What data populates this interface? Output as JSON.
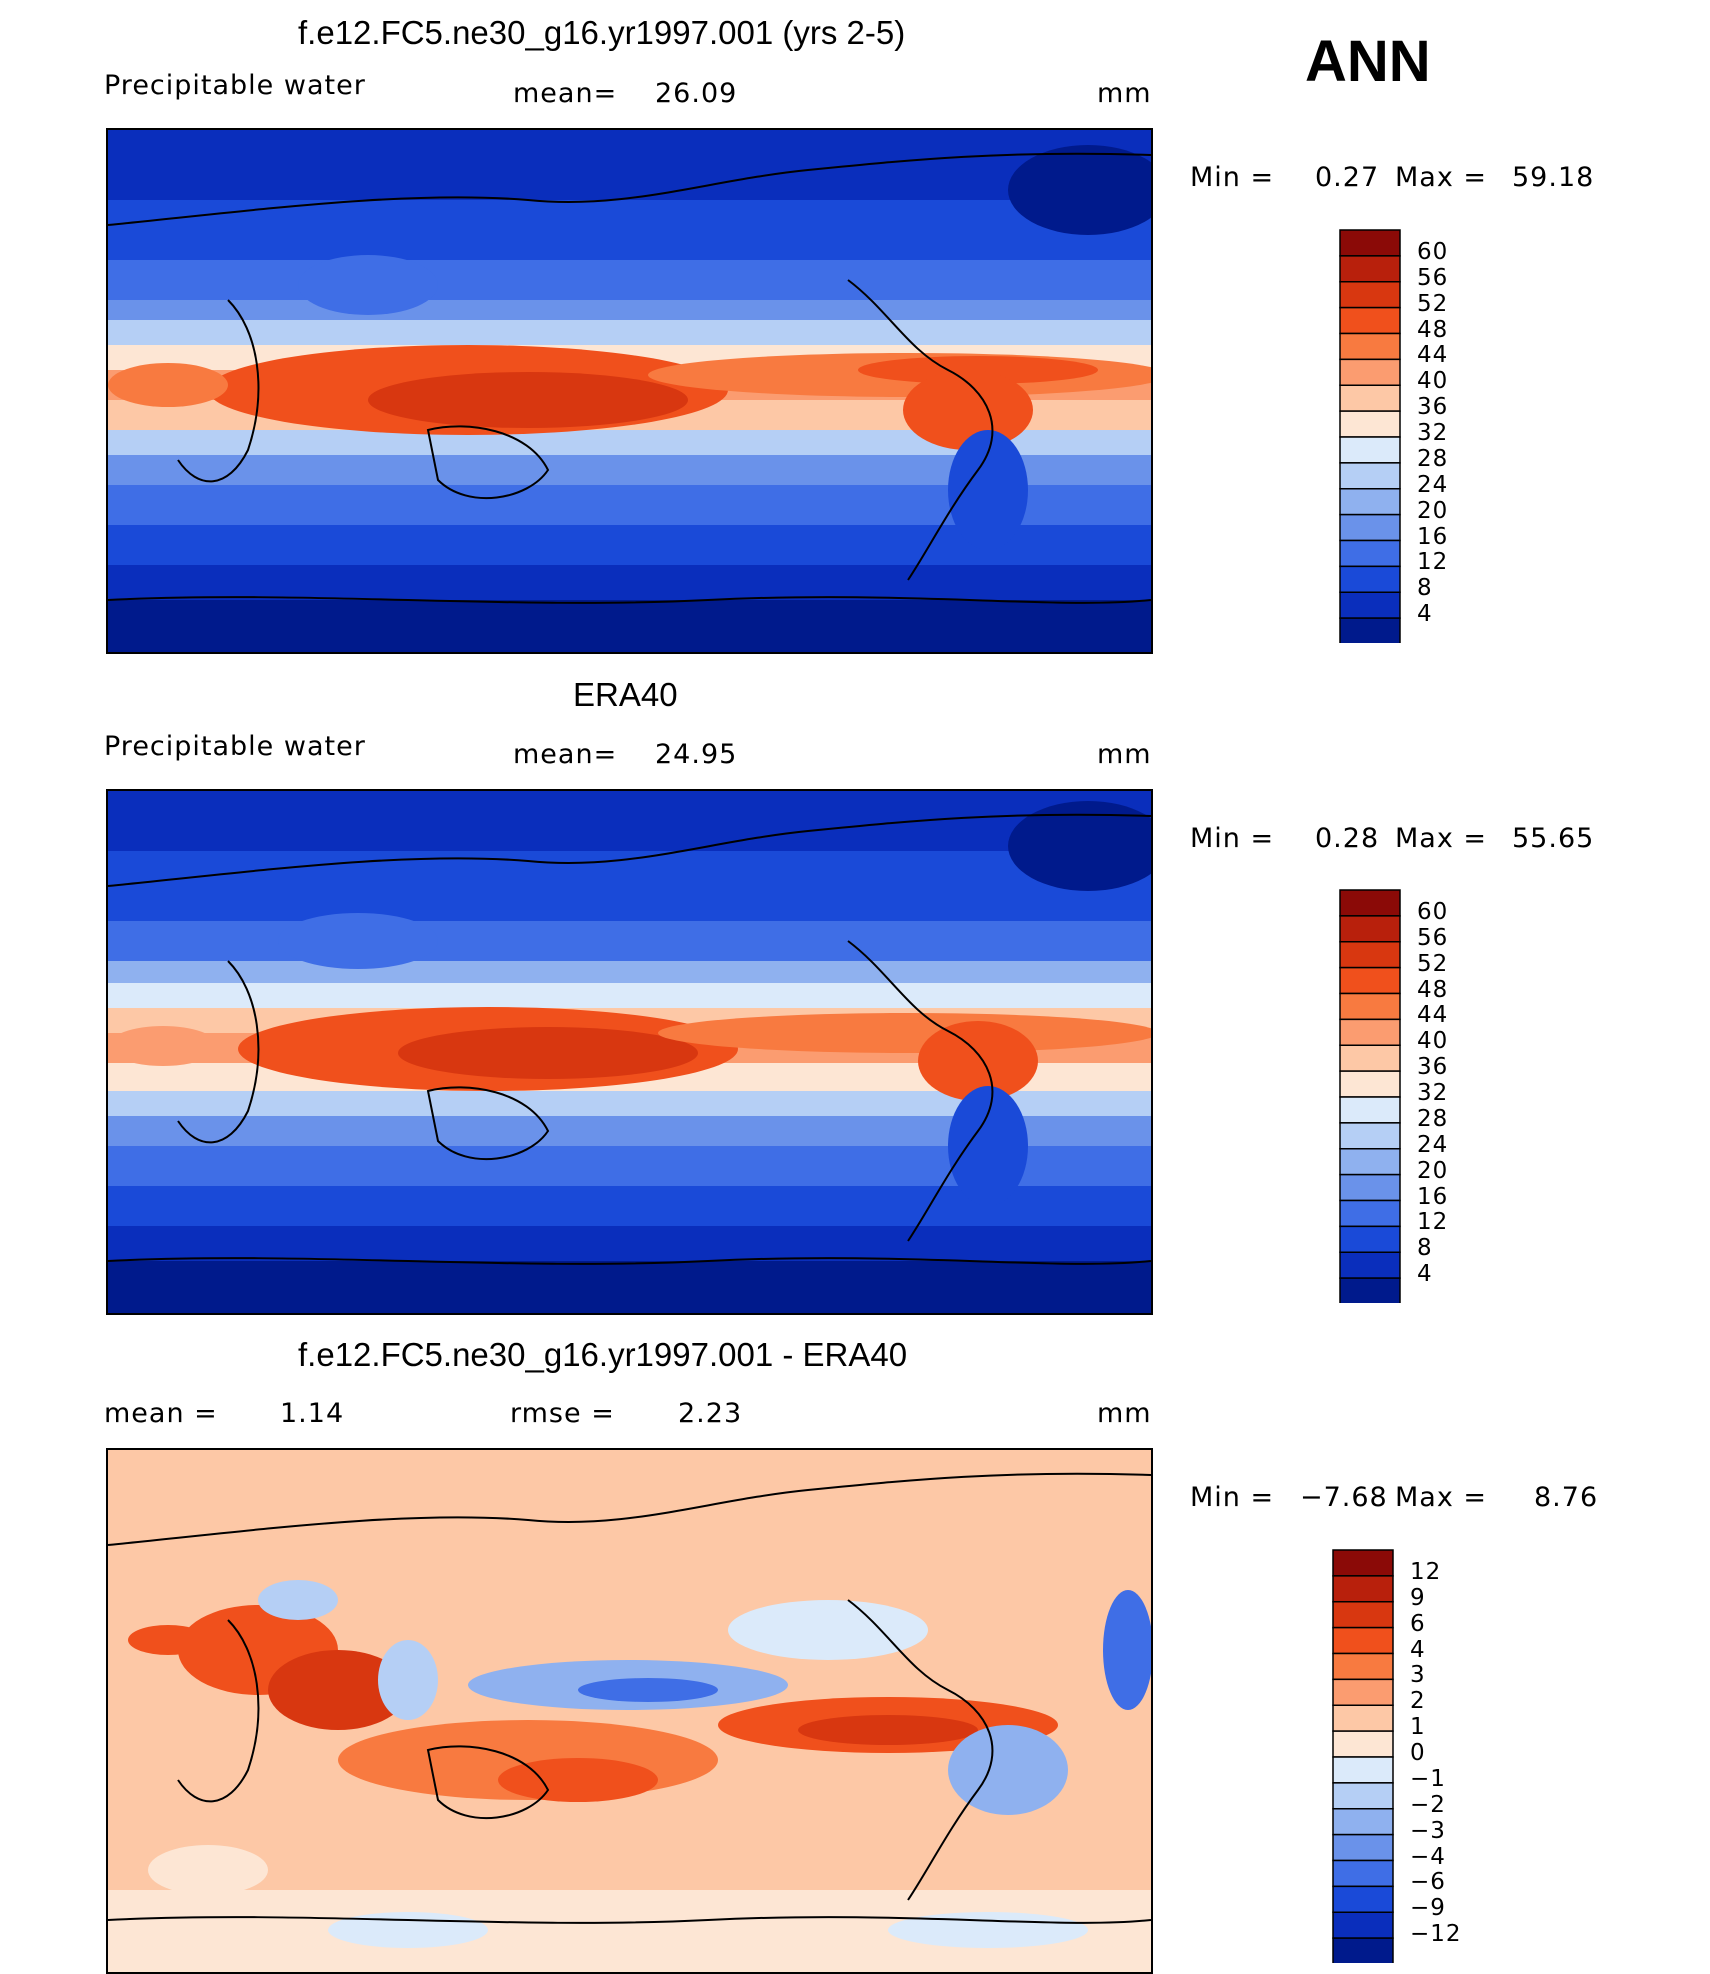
{
  "season": "ANN",
  "panels": [
    {
      "title": "f.e12.FC5.ne30_g16.yr1997.001 (yrs 2-5)",
      "left_label": "Precipitable  water",
      "center_label": "mean=",
      "center_value": "26.09",
      "units": "mm",
      "min_label": "Min  =",
      "min_value": "0.27",
      "max_label": "Max  =",
      "max_value": "59.18",
      "colorbar_ticks": [
        "60",
        "56",
        "52",
        "48",
        "44",
        "40",
        "36",
        "32",
        "28",
        "24",
        "20",
        "16",
        "12",
        "8",
        "4"
      ],
      "colorbar_colors": [
        "#8b0a07",
        "#b8200c",
        "#d83710",
        "#f0501c",
        "#f87a40",
        "#fb9c70",
        "#fdc8a6",
        "#fde6d4",
        "#dbeafa",
        "#b5cff5",
        "#8fb1ef",
        "#6a92ea",
        "#3f6ee6",
        "#1a4ad8",
        "#0a2ebc",
        "#001a8c"
      ]
    },
    {
      "title": "ERA40",
      "left_label": "Precipitable  water",
      "center_label": "mean=",
      "center_value": "24.95",
      "units": "mm",
      "min_label": "Min  =",
      "min_value": "0.28",
      "max_label": "Max  =",
      "max_value": "55.65",
      "colorbar_ticks": [
        "60",
        "56",
        "52",
        "48",
        "44",
        "40",
        "36",
        "32",
        "28",
        "24",
        "20",
        "16",
        "12",
        "8",
        "4"
      ],
      "colorbar_colors": [
        "#8b0a07",
        "#b8200c",
        "#d83710",
        "#f0501c",
        "#f87a40",
        "#fb9c70",
        "#fdc8a6",
        "#fde6d4",
        "#dbeafa",
        "#b5cff5",
        "#8fb1ef",
        "#6a92ea",
        "#3f6ee6",
        "#1a4ad8",
        "#0a2ebc",
        "#001a8c"
      ]
    },
    {
      "title": "f.e12.FC5.ne30_g16.yr1997.001 - ERA40",
      "left_label": "mean  =",
      "left_value": "1.14",
      "center_label": "rmse  =",
      "center_value": "2.23",
      "units": "mm",
      "min_label": "Min  =",
      "min_value": "−7.68",
      "max_label": "Max  =",
      "max_value": "8.76",
      "colorbar_ticks": [
        "12",
        "9",
        "6",
        "4",
        "3",
        "2",
        "1",
        "0",
        "−1",
        "−2",
        "−3",
        "−4",
        "−6",
        "−9",
        "−12"
      ],
      "colorbar_colors": [
        "#8b0a07",
        "#b8200c",
        "#d83710",
        "#f0501c",
        "#f87a40",
        "#fb9c70",
        "#fdc8a6",
        "#fde6d4",
        "#dbeafa",
        "#b5cff5",
        "#8fb1ef",
        "#6a92ea",
        "#3f6ee6",
        "#1a4ad8",
        "#0a2ebc",
        "#001a8c"
      ]
    }
  ]
}
